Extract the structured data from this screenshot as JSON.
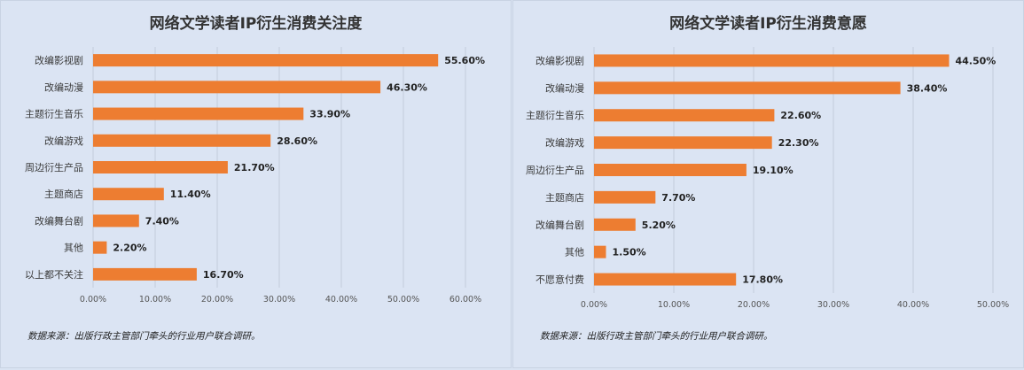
{
  "colors": {
    "bar": "#ed7d31",
    "background": "#dbe4f3",
    "grid": "#c3ccdb"
  },
  "chart_data": [
    {
      "type": "bar",
      "orientation": "horizontal",
      "title": "网络文学读者IP衍生消费关注度",
      "categories": [
        "改编影视剧",
        "改编动漫",
        "主题衍生音乐",
        "改编游戏",
        "周边衍生产品",
        "主题商店",
        "改编舞台剧",
        "其他",
        "以上都不关注"
      ],
      "values": [
        55.6,
        46.3,
        33.9,
        28.6,
        21.7,
        11.4,
        7.4,
        2.2,
        16.7
      ],
      "value_labels": [
        "55.60%",
        "46.30%",
        "33.90%",
        "28.60%",
        "21.70%",
        "11.40%",
        "7.40%",
        "2.20%",
        "16.70%"
      ],
      "xlim": [
        0,
        60
      ],
      "xticks": [
        0,
        10,
        20,
        30,
        40,
        50,
        60
      ],
      "xtick_labels": [
        "0.00%",
        "10.00%",
        "20.00%",
        "30.00%",
        "40.00%",
        "50.00%",
        "60.00%"
      ],
      "grid": true,
      "source": "数据来源：出版行政主管部门牵头的行业用户联合调研。"
    },
    {
      "type": "bar",
      "orientation": "horizontal",
      "title": "网络文学读者IP衍生消费意愿",
      "categories": [
        "改编影视剧",
        "改编动漫",
        "主题衍生音乐",
        "改编游戏",
        "周边衍生产品",
        "主题商店",
        "改编舞台剧",
        "其他",
        "不愿意付费"
      ],
      "values": [
        44.5,
        38.4,
        22.6,
        22.3,
        19.1,
        7.7,
        5.2,
        1.5,
        17.8
      ],
      "value_labels": [
        "44.50%",
        "38.40%",
        "22.60%",
        "22.30%",
        "19.10%",
        "7.70%",
        "5.20%",
        "1.50%",
        "17.80%"
      ],
      "xlim": [
        0,
        50
      ],
      "xticks": [
        0,
        10,
        20,
        30,
        40,
        50
      ],
      "xtick_labels": [
        "0.00%",
        "10.00%",
        "20.00%",
        "30.00%",
        "40.00%",
        "50.00%"
      ],
      "grid": true,
      "source": "数据来源：出版行政主管部门牵头的行业用户联合调研。"
    }
  ]
}
